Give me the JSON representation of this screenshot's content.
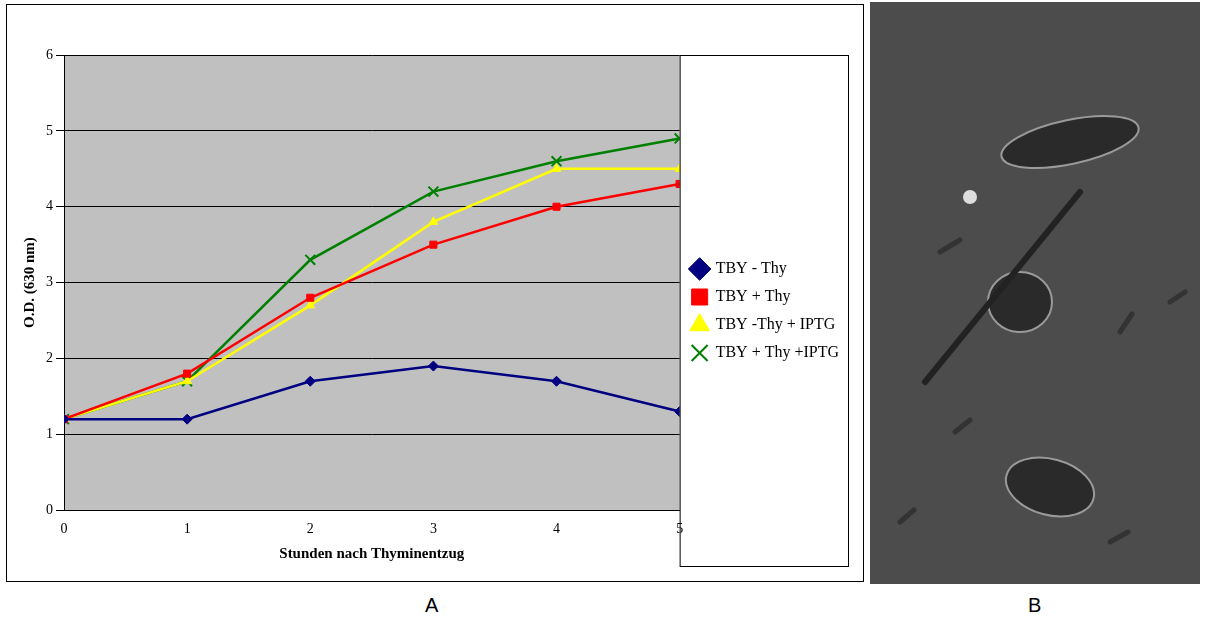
{
  "chart_data": {
    "type": "line",
    "x_label": "Stunden nach Thyminentzug",
    "y_label": "O.D. (630 nm)",
    "x": [
      0,
      1,
      2,
      3,
      4,
      5
    ],
    "series": [
      {
        "name": "TBY - Thy",
        "color": "#000080",
        "marker": "diamond",
        "values": [
          1.2,
          1.2,
          1.7,
          1.9,
          1.7,
          1.3
        ]
      },
      {
        "name": "TBY + Thy",
        "color": "#ff0000",
        "marker": "square",
        "values": [
          1.2,
          1.8,
          2.8,
          3.5,
          4.0,
          4.3
        ]
      },
      {
        "name": "TBY -Thy + IPTG",
        "color": "#ffff00",
        "marker": "triangle",
        "values": [
          1.2,
          1.7,
          2.7,
          3.8,
          4.5,
          4.5
        ]
      },
      {
        "name": "TBY + Thy +IPTG",
        "color": "#008000",
        "marker": "x",
        "values": [
          1.2,
          1.7,
          3.3,
          4.2,
          4.6,
          4.9
        ]
      }
    ],
    "xlim": [
      0,
      5
    ],
    "xticks": [
      0,
      1,
      2,
      3,
      4,
      5
    ],
    "ylim": [
      0,
      6
    ],
    "yticks": [
      0,
      1,
      2,
      3,
      4,
      5,
      6
    ],
    "grid": true,
    "legend": "right"
  },
  "panel_labels": [
    "A",
    "B"
  ]
}
